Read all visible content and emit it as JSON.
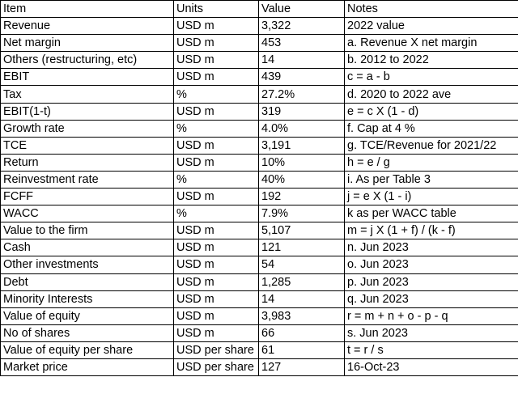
{
  "headers": {
    "item": "Item",
    "units": "Units",
    "value": "Value",
    "notes": "Notes"
  },
  "rows": [
    {
      "item": "Revenue",
      "units": "USD m",
      "value": "3,322",
      "notes": "2022 value"
    },
    {
      "item": "Net margin",
      "units": "USD m",
      "value": "453",
      "notes": "a. Revenue X net margin"
    },
    {
      "item": "Others (restructuring, etc)",
      "units": "USD m",
      "value": "14",
      "notes": "b. 2012 to 2022"
    },
    {
      "item": "EBIT",
      "units": "USD m",
      "value": "439",
      "notes": "c = a - b"
    },
    {
      "item": "Tax",
      "units": "%",
      "value": "27.2%",
      "notes": "d. 2020 to 2022 ave"
    },
    {
      "item": "EBIT(1-t)",
      "units": "USD m",
      "value": "319",
      "notes": "e = c X (1 - d)"
    },
    {
      "item": "Growth rate",
      "units": "%",
      "value": "4.0%",
      "notes": "f. Cap at 4 %"
    },
    {
      "item": "TCE",
      "units": "USD m",
      "value": "3,191",
      "notes": "g. TCE/Revenue for 2021/22"
    },
    {
      "item": "Return",
      "units": "USD m",
      "value": "10%",
      "notes": "h = e / g"
    },
    {
      "item": "Reinvestment rate",
      "units": "%",
      "value": "40%",
      "notes": "i. As per Table 3"
    },
    {
      "item": "FCFF",
      "units": "USD m",
      "value": "192",
      "notes": "j = e X (1 - i)"
    },
    {
      "item": "WACC",
      "units": "%",
      "value": "7.9%",
      "notes": "k as per WACC table"
    },
    {
      "item": "Value to the firm",
      "units": "USD m",
      "value": "5,107",
      "notes": "m = j X (1 + f) / (k - f)"
    },
    {
      "item": "Cash",
      "units": "USD m",
      "value": "121",
      "notes": "n. Jun 2023"
    },
    {
      "item": "Other investments",
      "units": "USD m",
      "value": "54",
      "notes": "o. Jun 2023"
    },
    {
      "item": "Debt",
      "units": "USD m",
      "value": "1,285",
      "notes": "p. Jun 2023"
    },
    {
      "item": "Minority Interests",
      "units": "USD m",
      "value": "14",
      "notes": "q. Jun 2023"
    },
    {
      "item": "Value of equity",
      "units": "USD m",
      "value": "3,983",
      "notes": "r = m + n + o - p - q"
    },
    {
      "item": "No of shares",
      "units": "USD m",
      "value": "66",
      "notes": "s. Jun 2023"
    },
    {
      "item": "Value of equity per share",
      "units": "USD per share",
      "value": "61",
      "notes": "t = r / s"
    },
    {
      "item": "Market price",
      "units": "USD per share",
      "value": "127",
      "notes": "16-Oct-23"
    }
  ]
}
